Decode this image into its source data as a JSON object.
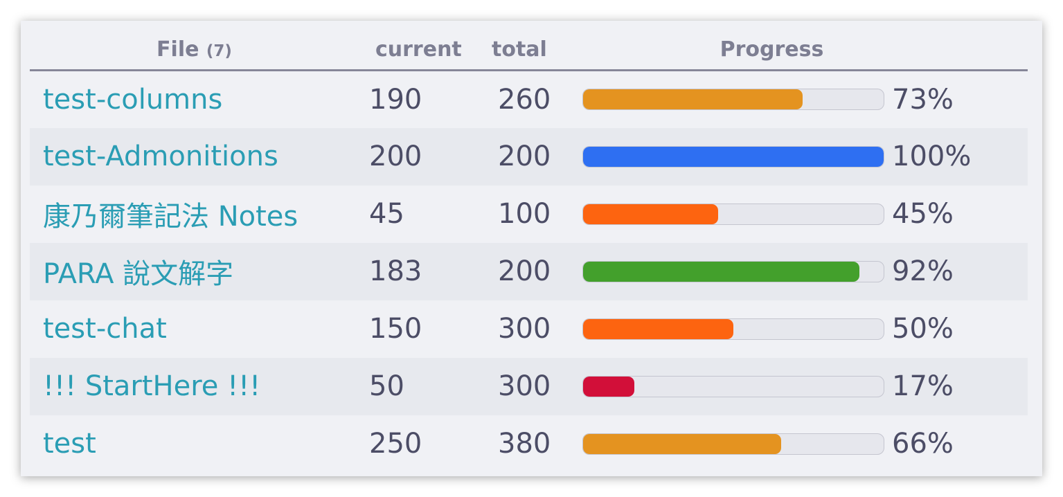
{
  "table": {
    "headers": {
      "file": "File",
      "file_count": "(7)",
      "current": "current",
      "total": "total",
      "progress": "Progress"
    },
    "rows": [
      {
        "file": "test-columns",
        "current": "190",
        "total": "260",
        "percent_label": "73%",
        "progress": 0.73,
        "bar_color": "#e49320"
      },
      {
        "file": "test-Admonitions",
        "current": "200",
        "total": "200",
        "percent_label": "100%",
        "progress": 1.0,
        "bar_color": "#2e6ff2"
      },
      {
        "file": "康乃爾筆記法 Notes",
        "current": "45",
        "total": "100",
        "percent_label": "45%",
        "progress": 0.45,
        "bar_color": "#fd6410"
      },
      {
        "file": "PARA 說文解字",
        "current": "183",
        "total": "200",
        "percent_label": "92%",
        "progress": 0.92,
        "bar_color": "#43a02c"
      },
      {
        "file": "test-chat",
        "current": "150",
        "total": "300",
        "percent_label": "50%",
        "progress": 0.5,
        "bar_color": "#fd6410"
      },
      {
        "file": "!!! StartHere !!!",
        "current": "50",
        "total": "300",
        "percent_label": "17%",
        "progress": 0.17,
        "bar_color": "#d20f39"
      },
      {
        "file": "test",
        "current": "250",
        "total": "380",
        "percent_label": "66%",
        "progress": 0.66,
        "bar_color": "#e49320"
      }
    ]
  }
}
